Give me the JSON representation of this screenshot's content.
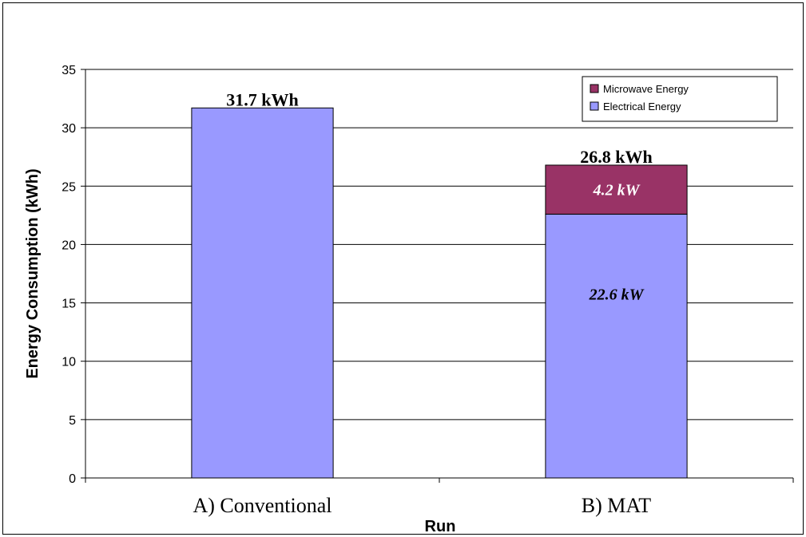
{
  "chart_data": {
    "type": "bar",
    "stacked": true,
    "categories": [
      "A) Conventional",
      "B) MAT"
    ],
    "series": [
      {
        "name": "Electrical Energy",
        "values": [
          31.7,
          22.6
        ],
        "color": "#9999FF",
        "labels": [
          "",
          "22.6 kW"
        ]
      },
      {
        "name": "Microwave Energy",
        "values": [
          0,
          4.2
        ],
        "color": "#993366",
        "labels": [
          "",
          "4.2 kW"
        ]
      }
    ],
    "totals": [
      "31.7 kWh",
      "26.8 kWh"
    ],
    "xlabel": "Run",
    "ylabel": "Energy Consumption (kWh)",
    "ylim": [
      0,
      35
    ],
    "yticks": [
      0,
      5,
      10,
      15,
      20,
      25,
      30,
      35
    ],
    "grid": true,
    "legend_position": "top-right"
  }
}
